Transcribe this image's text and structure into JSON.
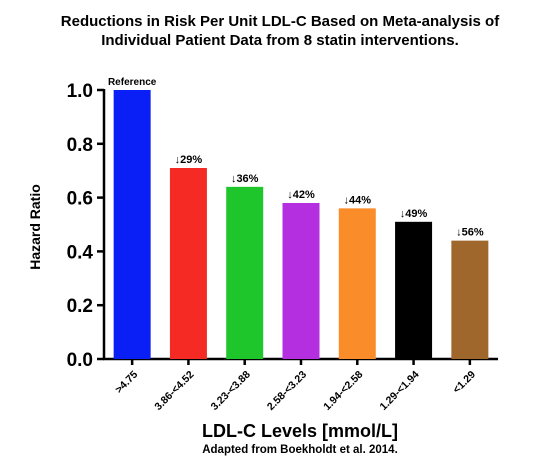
{
  "chart_data": {
    "type": "bar",
    "title": "Reductions in Risk Per Unit LDL-C Based on Meta-analysis of Individual Patient Data from 8 statin interventions.",
    "xlabel": "LDL-C Levels [mmol/L]",
    "ylabel": "Hazard Ratio",
    "source_note": "Adapted from Boekholdt et al. 2014.",
    "ylim": [
      0,
      1.0
    ],
    "yticks": [
      "0.0",
      "0.2",
      "0.4",
      "0.6",
      "0.8",
      "1.0"
    ],
    "grid": false,
    "categories": [
      ">4.75",
      "3.86-<4.52",
      "3.23-<3.88",
      "2.58-<3.23",
      "1.94-<2.58",
      "1.29-<1.94",
      "<1.29"
    ],
    "values": [
      1.0,
      0.71,
      0.64,
      0.58,
      0.56,
      0.51,
      0.44
    ],
    "bar_labels": [
      "Reference",
      "↓29%",
      "↓36%",
      "↓42%",
      "↓44%",
      "↓49%",
      "↓56%"
    ],
    "colors": [
      "#0a1ff5",
      "#f52a25",
      "#1ec62b",
      "#b32fe0",
      "#fb8c2a",
      "#000000",
      "#a0672c"
    ]
  }
}
